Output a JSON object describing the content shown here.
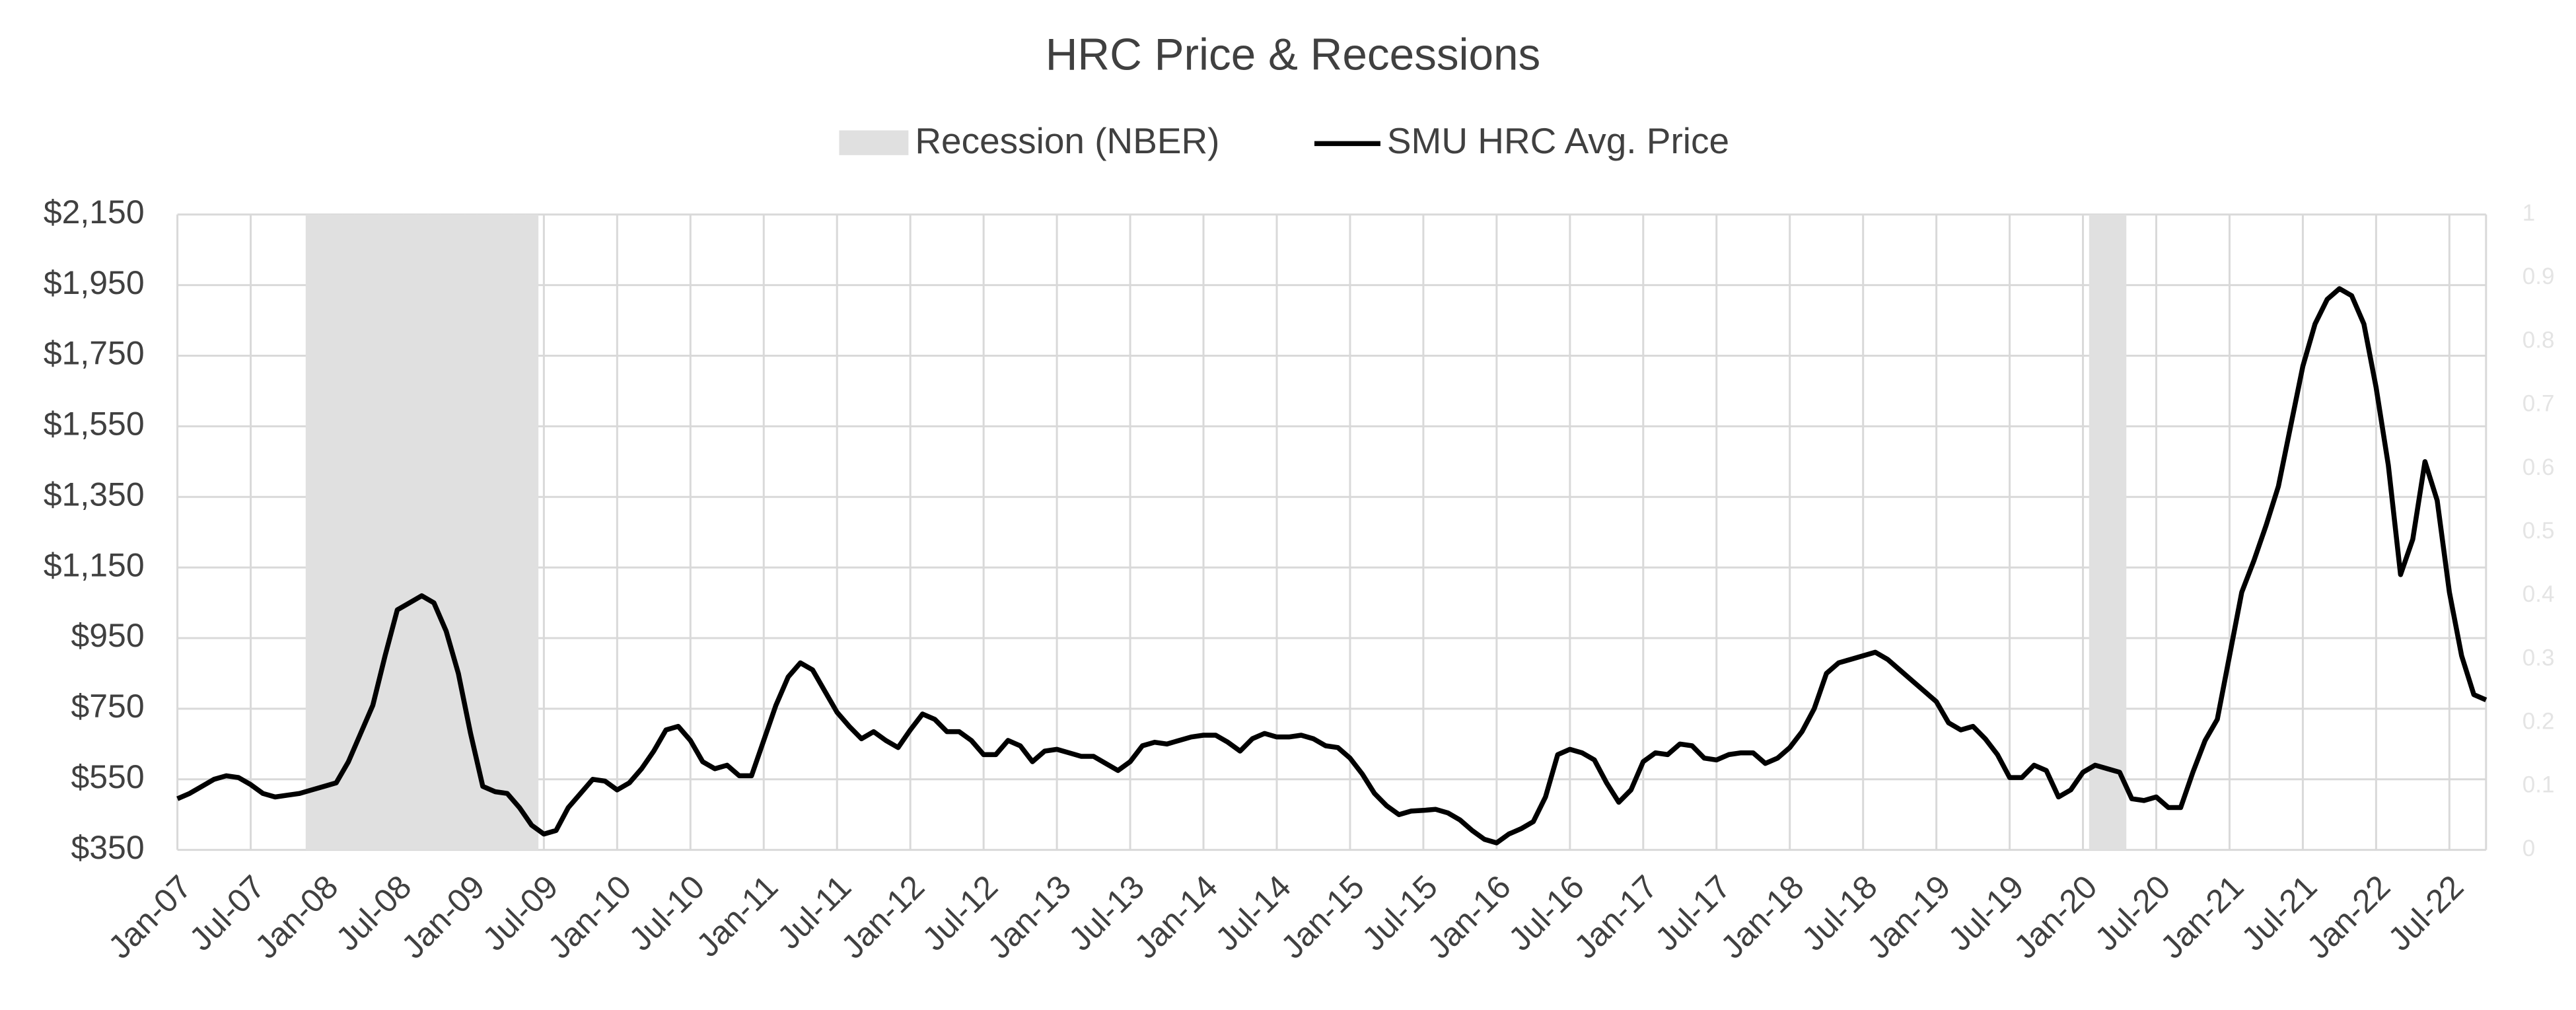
{
  "chart_data": {
    "type": "line",
    "title": "HRC Price & Recessions",
    "categories": [
      "Jan-07",
      null,
      null,
      null,
      null,
      null,
      "Jul-07",
      null,
      null,
      null,
      null,
      null,
      "Jan-08",
      null,
      null,
      null,
      null,
      null,
      "Jul-08",
      null,
      null,
      null,
      null,
      null,
      "Jan-09",
      null,
      null,
      null,
      null,
      null,
      "Jul-09",
      null,
      null,
      null,
      null,
      null,
      "Jan-10",
      null,
      null,
      null,
      null,
      null,
      "Jul-10",
      null,
      null,
      null,
      null,
      null,
      "Jan-11",
      null,
      null,
      null,
      null,
      null,
      "Jul-11",
      null,
      null,
      null,
      null,
      null,
      "Jan-12",
      null,
      null,
      null,
      null,
      null,
      "Jul-12",
      null,
      null,
      null,
      null,
      null,
      "Jan-13",
      null,
      null,
      null,
      null,
      null,
      "Jul-13",
      null,
      null,
      null,
      null,
      null,
      "Jan-14",
      null,
      null,
      null,
      null,
      null,
      "Jul-14",
      null,
      null,
      null,
      null,
      null,
      "Jan-15",
      null,
      null,
      null,
      null,
      null,
      "Jul-15",
      null,
      null,
      null,
      null,
      null,
      "Jan-16",
      null,
      null,
      null,
      null,
      null,
      "Jul-16",
      null,
      null,
      null,
      null,
      null,
      "Jan-17",
      null,
      null,
      null,
      null,
      null,
      "Jul-17",
      null,
      null,
      null,
      null,
      null,
      "Jan-18",
      null,
      null,
      null,
      null,
      null,
      "Jul-18",
      null,
      null,
      null,
      null,
      null,
      "Jan-19",
      null,
      null,
      null,
      null,
      null,
      "Jul-19",
      null,
      null,
      null,
      null,
      null,
      "Jan-20",
      null,
      null,
      null,
      null,
      null,
      "Jul-20",
      null,
      null,
      null,
      null,
      null,
      "Jan-21",
      null,
      null,
      null,
      null,
      null,
      "Jul-21",
      null,
      null,
      null,
      null,
      null,
      "Jan-22",
      null,
      null,
      null,
      null,
      null,
      "Jul-22",
      null,
      null,
      null
    ],
    "series": [
      {
        "name": "Recession (NBER)",
        "color": "#e0e0e0",
        "axis": "y2",
        "values": [
          0,
          0,
          0,
          0,
          0,
          0,
          0,
          0,
          0,
          0,
          0,
          1,
          1,
          1,
          1,
          1,
          1,
          1,
          1,
          1,
          1,
          1,
          1,
          1,
          1,
          1,
          1,
          1,
          1,
          1,
          0,
          0,
          0,
          0,
          0,
          0,
          0,
          0,
          0,
          0,
          0,
          0,
          0,
          0,
          0,
          0,
          0,
          0,
          0,
          0,
          0,
          0,
          0,
          0,
          0,
          0,
          0,
          0,
          0,
          0,
          0,
          0,
          0,
          0,
          0,
          0,
          0,
          0,
          0,
          0,
          0,
          0,
          0,
          0,
          0,
          0,
          0,
          0,
          0,
          0,
          0,
          0,
          0,
          0,
          0,
          0,
          0,
          0,
          0,
          0,
          0,
          0,
          0,
          0,
          0,
          0,
          0,
          0,
          0,
          0,
          0,
          0,
          0,
          0,
          0,
          0,
          0,
          0,
          0,
          0,
          0,
          0,
          0,
          0,
          0,
          0,
          0,
          0,
          0,
          0,
          0,
          0,
          0,
          0,
          0,
          0,
          0,
          0,
          0,
          0,
          0,
          0,
          0,
          0,
          0,
          0,
          0,
          0,
          0,
          0,
          0,
          0,
          0,
          0,
          0,
          0,
          0,
          0,
          0,
          0,
          0,
          0,
          0,
          0,
          0,
          0,
          0,
          1,
          1,
          1,
          0,
          0,
          0,
          0,
          0,
          0,
          0,
          0,
          0,
          0,
          0,
          0,
          0,
          0,
          0,
          0,
          0,
          0,
          0,
          0,
          0,
          0,
          0,
          0,
          0,
          0,
          0,
          0,
          0,
          0
        ]
      },
      {
        "name": "SMU HRC Avg. Price",
        "color": "#000000",
        "values": [
          495,
          510,
          530,
          550,
          560,
          555,
          535,
          510,
          500,
          505,
          510,
          520,
          530,
          540,
          600,
          680,
          760,
          900,
          1030,
          1050,
          1070,
          1050,
          970,
          850,
          680,
          530,
          515,
          510,
          470,
          420,
          395,
          405,
          470,
          510,
          550,
          545,
          520,
          540,
          580,
          630,
          690,
          700,
          660,
          600,
          580,
          590,
          560,
          560,
          660,
          760,
          840,
          880,
          860,
          800,
          740,
          700,
          665,
          685,
          660,
          640,
          690,
          735,
          720,
          685,
          685,
          660,
          620,
          620,
          660,
          645,
          600,
          630,
          635,
          625,
          615,
          615,
          595,
          575,
          600,
          645,
          655,
          650,
          660,
          670,
          675,
          675,
          655,
          630,
          665,
          680,
          670,
          670,
          675,
          665,
          645,
          640,
          610,
          565,
          510,
          475,
          450,
          460,
          462,
          465,
          455,
          435,
          405,
          380,
          370,
          395,
          410,
          430,
          500,
          620,
          635,
          625,
          605,
          540,
          485,
          520,
          600,
          625,
          620,
          650,
          645,
          610,
          605,
          620,
          625,
          625,
          595,
          610,
          640,
          685,
          750,
          850,
          880,
          890,
          900,
          910,
          890,
          860,
          830,
          800,
          770,
          710,
          690,
          700,
          665,
          620,
          555,
          555,
          590,
          575,
          500,
          520,
          570,
          590,
          580,
          570,
          495,
          490,
          500,
          470,
          470,
          570,
          660,
          720,
          900,
          1080,
          1170,
          1270,
          1380,
          1550,
          1720,
          1840,
          1910,
          1940,
          1920,
          1840,
          1660,
          1440,
          1130,
          1230,
          1450,
          1340,
          1080,
          900,
          790,
          775
        ]
      }
    ],
    "ylim": [
      350,
      2150
    ],
    "yticks": [
      {
        "value": 350,
        "label": "$350"
      },
      {
        "value": 550,
        "label": "$550"
      },
      {
        "value": 750,
        "label": "$750"
      },
      {
        "value": 950,
        "label": "$950"
      },
      {
        "value": 1150,
        "label": "$1,150"
      },
      {
        "value": 1350,
        "label": "$1,350"
      },
      {
        "value": 1550,
        "label": "$1,550"
      },
      {
        "value": 1750,
        "label": "$1,750"
      },
      {
        "value": 1950,
        "label": "$1,950"
      },
      {
        "value": 2150,
        "label": "$2,150"
      }
    ],
    "y2lim": [
      0,
      1
    ],
    "y2ticks": [
      0,
      0.1,
      0.2,
      0.3,
      0.4,
      0.5,
      0.6,
      0.7,
      0.8,
      0.9,
      1
    ],
    "grid": true,
    "legend": "top"
  }
}
